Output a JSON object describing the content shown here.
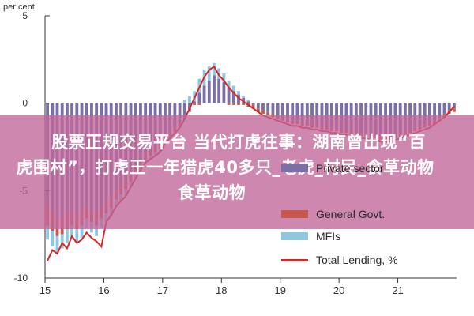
{
  "chart_data": {
    "type": "bar",
    "ylabel_top": "per cent",
    "ylim": [
      -10,
      5
    ],
    "yticks": [
      5,
      0,
      -5,
      -10
    ],
    "x_tick_labels": [
      "15",
      "16",
      "17",
      "18",
      "19",
      "20",
      "21"
    ],
    "x_start": 15.0,
    "x_end": 22.0,
    "grid": false,
    "legend_placement": "bottom-right",
    "colors": {
      "private": "#7b6fa8",
      "general": "#c9584c",
      "mfis": "#8fc7e0",
      "total": "#d62728"
    },
    "series": [
      {
        "name": "Private sector",
        "values": [
          -5.8,
          -6.2,
          -6.6,
          -6.5,
          -6.3,
          -6.1,
          -6.4,
          -6.2,
          -5.9,
          -6.1,
          -6.3,
          -6.0,
          -5.7,
          -5.4,
          -5.0,
          -4.7,
          -4.4,
          -4.1,
          -3.6,
          -3.2,
          -2.9,
          -2.7,
          -2.5,
          -2.3,
          -2.0,
          -1.7,
          -1.4,
          -1.1,
          -0.8,
          -0.4,
          0.1,
          0.6,
          1.0,
          1.3,
          1.6,
          1.4,
          1.2,
          0.9,
          0.7,
          0.5,
          0.3,
          0.1,
          -0.1,
          -0.3,
          -0.4,
          -0.5,
          -0.6,
          -0.7,
          -0.8,
          -0.9,
          -1.0,
          -1.0,
          -1.1,
          -1.1,
          -1.2,
          -1.2,
          -1.3,
          -1.3,
          -1.4,
          -1.4,
          -1.5,
          -1.5,
          -1.6,
          -1.6,
          -1.7,
          -1.7,
          -1.8,
          -1.8,
          -1.9,
          -1.9,
          -1.9,
          -1.8,
          -1.7,
          -1.6,
          -1.5,
          -1.4,
          -1.3,
          -1.2,
          -1.1,
          -1.0,
          -0.8,
          -0.6,
          -0.4,
          -0.3
        ]
      },
      {
        "name": "General Govt.",
        "values": [
          -1.2,
          -1.1,
          -1.0,
          -1.0,
          -0.9,
          -0.9,
          -0.8,
          -0.8,
          -0.7,
          -0.7,
          -0.7,
          -0.6,
          -0.6,
          -0.6,
          -0.5,
          -0.5,
          -0.5,
          -0.4,
          -0.4,
          -0.4,
          -0.3,
          -0.3,
          -0.3,
          -0.3,
          -0.2,
          -0.2,
          -0.2,
          -0.2,
          -0.1,
          -0.1,
          -0.1,
          -0.1,
          0.0,
          0.0,
          0.0,
          0.0,
          0.0,
          -0.1,
          -0.1,
          -0.1,
          -0.1,
          -0.2,
          -0.2,
          -0.2,
          -0.2,
          -0.2,
          -0.2,
          -0.2,
          -0.2,
          -0.2,
          -0.2,
          -0.2,
          -0.2,
          -0.2,
          -0.2,
          -0.2,
          -0.2,
          -0.2,
          -0.2,
          -0.2,
          -0.2,
          -0.2,
          -0.2,
          -0.2,
          -0.2,
          -0.2,
          -0.2,
          -0.2,
          -0.2,
          -0.2,
          -0.2,
          -0.2,
          -0.2,
          -0.2,
          -0.2,
          -0.2,
          -0.2,
          -0.2,
          -0.2,
          -0.2,
          -0.2,
          -0.2,
          -0.2,
          -0.2
        ]
      },
      {
        "name": "MFIs",
        "values": [
          -0.8,
          -0.9,
          -0.9,
          -0.8,
          -0.8,
          -0.7,
          -0.7,
          -0.7,
          -0.6,
          -0.6,
          -0.6,
          -0.5,
          -0.5,
          -0.5,
          -0.4,
          -0.4,
          -0.4,
          -0.3,
          -0.3,
          -0.3,
          -0.2,
          -0.2,
          -0.2,
          -0.2,
          -0.1,
          -0.1,
          -0.1,
          -0.1,
          0.2,
          0.4,
          0.6,
          0.8,
          0.9,
          0.8,
          0.7,
          0.6,
          0.5,
          0.4,
          0.3,
          0.2,
          0.1,
          0.1,
          0.0,
          0.0,
          0.0,
          0.0,
          0.0,
          0.0,
          0.0,
          0.0,
          0.0,
          0.0,
          0.0,
          0.0,
          0.0,
          0.0,
          0.0,
          0.0,
          0.0,
          0.0,
          0.0,
          0.0,
          0.0,
          0.0,
          0.0,
          0.0,
          0.0,
          0.0,
          0.0,
          0.0,
          0.0,
          0.0,
          0.0,
          0.0,
          0.0,
          0.0,
          0.0,
          0.0,
          0.0,
          0.0,
          0.0,
          0.0,
          0.0,
          0.0
        ]
      },
      {
        "name": "Total Lending, %",
        "values": [
          -9.0,
          -8.4,
          -8.6,
          -8.0,
          -8.3,
          -7.6,
          -8.0,
          -7.8,
          -7.4,
          -7.7,
          -7.9,
          -8.2,
          -6.8,
          -6.4,
          -5.9,
          -5.6,
          -5.3,
          -4.8,
          -4.3,
          -3.8,
          -3.4,
          -3.2,
          -3.0,
          -2.8,
          -2.3,
          -2.0,
          -1.7,
          -1.4,
          -0.9,
          -0.3,
          0.3,
          0.9,
          1.5,
          1.9,
          2.1,
          1.6,
          1.3,
          0.9,
          0.6,
          0.3,
          0.1,
          -0.1,
          -0.3,
          -0.5,
          -0.7,
          -0.8,
          -0.9,
          -1.0,
          -1.1,
          -1.2,
          -1.3,
          -1.3,
          -1.4,
          -1.4,
          -1.5,
          -1.5,
          -1.6,
          -1.6,
          -1.7,
          -1.7,
          -1.8,
          -1.8,
          -1.9,
          -1.9,
          -2.0,
          -2.0,
          -2.1,
          -2.1,
          -2.2,
          -2.2,
          -2.2,
          -2.1,
          -2.0,
          -1.9,
          -1.8,
          -1.7,
          -1.6,
          -1.5,
          -1.4,
          -1.2,
          -1.0,
          -0.8,
          -0.5,
          -0.2
        ]
      }
    ]
  },
  "overlay": {
    "line1": "股票正规交易平台 当代打虎往事：湖南曾出现“百",
    "line2": "虎围村”，打虎王一年猎虎40多只_老虎_村民_食草动物",
    "line3": "食草动物"
  }
}
